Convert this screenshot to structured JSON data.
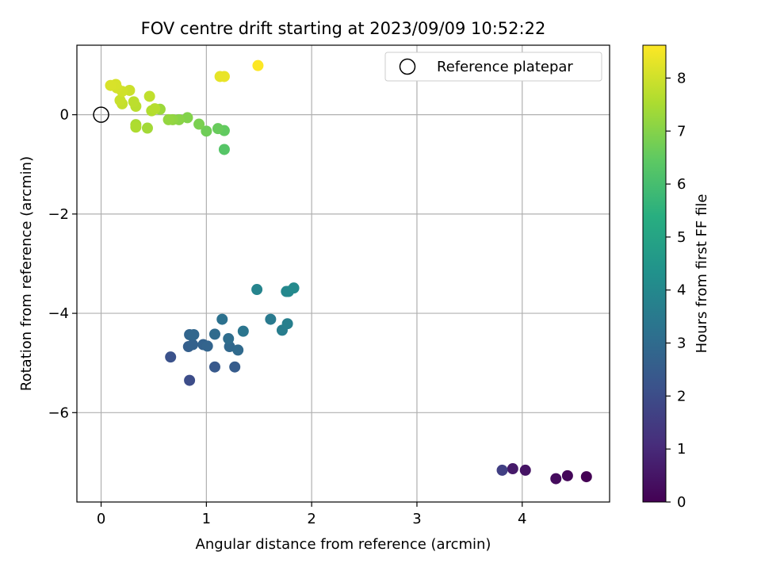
{
  "chart_data": {
    "type": "scatter",
    "title": "FOV centre drift starting at 2023/09/09 10:52:22",
    "xlabel": "Angular distance from reference (arcmin)",
    "ylabel": "Rotation from reference (arcmin)",
    "xlim": [
      -0.23,
      4.83
    ],
    "ylim": [
      -7.8,
      1.4
    ],
    "xticks": [
      0,
      1,
      2,
      3,
      4
    ],
    "yticks": [
      -6,
      -4,
      -2,
      0
    ],
    "grid": true,
    "legend": {
      "placement": "top-right",
      "entries": [
        "Reference platepar"
      ]
    },
    "colorbar": {
      "label": "Hours from first FF file",
      "range": [
        0,
        8.62
      ],
      "ticks": [
        0,
        1,
        2,
        3,
        4,
        5,
        6,
        7,
        8
      ],
      "colormap": "viridis"
    },
    "reference_point": {
      "x": 0,
      "y": 0,
      "label": "Reference platepar"
    },
    "points": [
      {
        "x": 4.61,
        "y": -7.29,
        "c": 0.0
      },
      {
        "x": 4.43,
        "y": -7.27,
        "c": 0.15
      },
      {
        "x": 4.32,
        "y": -7.33,
        "c": 0.25
      },
      {
        "x": 4.03,
        "y": -7.16,
        "c": 0.45
      },
      {
        "x": 3.91,
        "y": -7.13,
        "c": 0.6
      },
      {
        "x": 3.81,
        "y": -7.16,
        "c": 1.6
      },
      {
        "x": 0.84,
        "y": -5.35,
        "c": 2.0
      },
      {
        "x": 0.66,
        "y": -4.88,
        "c": 2.15
      },
      {
        "x": 1.08,
        "y": -5.08,
        "c": 2.4
      },
      {
        "x": 1.27,
        "y": -5.08,
        "c": 2.5
      },
      {
        "x": 0.83,
        "y": -4.67,
        "c": 2.6
      },
      {
        "x": 0.87,
        "y": -4.63,
        "c": 2.65
      },
      {
        "x": 0.97,
        "y": -4.63,
        "c": 2.7
      },
      {
        "x": 1.01,
        "y": -4.66,
        "c": 2.75
      },
      {
        "x": 0.84,
        "y": -4.43,
        "c": 2.8
      },
      {
        "x": 0.88,
        "y": -4.43,
        "c": 2.85
      },
      {
        "x": 1.22,
        "y": -4.67,
        "c": 2.9
      },
      {
        "x": 1.3,
        "y": -4.74,
        "c": 2.95
      },
      {
        "x": 1.08,
        "y": -4.42,
        "c": 3.0
      },
      {
        "x": 1.21,
        "y": -4.51,
        "c": 3.05
      },
      {
        "x": 1.15,
        "y": -4.12,
        "c": 3.2
      },
      {
        "x": 1.35,
        "y": -4.36,
        "c": 3.35
      },
      {
        "x": 1.61,
        "y": -4.12,
        "c": 3.5
      },
      {
        "x": 1.72,
        "y": -4.34,
        "c": 3.6
      },
      {
        "x": 1.77,
        "y": -4.21,
        "c": 3.7
      },
      {
        "x": 1.48,
        "y": -3.52,
        "c": 3.85
      },
      {
        "x": 1.76,
        "y": -3.56,
        "c": 3.95
      },
      {
        "x": 1.78,
        "y": -3.56,
        "c": 4.0
      },
      {
        "x": 1.83,
        "y": -3.49,
        "c": 4.05
      },
      {
        "x": 1.17,
        "y": -0.7,
        "c": 6.3
      },
      {
        "x": 1.17,
        "y": -0.32,
        "c": 6.5
      },
      {
        "x": 1.11,
        "y": -0.28,
        "c": 6.6
      },
      {
        "x": 1.0,
        "y": -0.33,
        "c": 6.7
      },
      {
        "x": 0.93,
        "y": -0.19,
        "c": 6.85
      },
      {
        "x": 0.82,
        "y": -0.06,
        "c": 6.95
      },
      {
        "x": 0.74,
        "y": -0.1,
        "c": 7.05
      },
      {
        "x": 0.68,
        "y": -0.1,
        "c": 7.15
      },
      {
        "x": 0.64,
        "y": -0.1,
        "c": 7.2
      },
      {
        "x": 0.56,
        "y": 0.11,
        "c": 7.3
      },
      {
        "x": 0.44,
        "y": -0.27,
        "c": 7.4
      },
      {
        "x": 0.33,
        "y": -0.2,
        "c": 7.5
      },
      {
        "x": 0.33,
        "y": -0.25,
        "c": 7.55
      },
      {
        "x": 0.48,
        "y": 0.08,
        "c": 7.6
      },
      {
        "x": 0.51,
        "y": 0.12,
        "c": 7.65
      },
      {
        "x": 0.33,
        "y": 0.17,
        "c": 7.7
      },
      {
        "x": 0.31,
        "y": 0.26,
        "c": 7.75
      },
      {
        "x": 0.46,
        "y": 0.37,
        "c": 7.8
      },
      {
        "x": 0.2,
        "y": 0.22,
        "c": 7.85
      },
      {
        "x": 0.18,
        "y": 0.29,
        "c": 7.9
      },
      {
        "x": 0.27,
        "y": 0.49,
        "c": 7.95
      },
      {
        "x": 0.2,
        "y": 0.47,
        "c": 8.0
      },
      {
        "x": 0.15,
        "y": 0.54,
        "c": 8.05
      },
      {
        "x": 0.14,
        "y": 0.61,
        "c": 8.1
      },
      {
        "x": 0.09,
        "y": 0.59,
        "c": 8.12
      },
      {
        "x": 1.13,
        "y": 0.77,
        "c": 8.3
      },
      {
        "x": 1.17,
        "y": 0.77,
        "c": 8.35
      },
      {
        "x": 1.49,
        "y": 0.99,
        "c": 8.6
      }
    ]
  }
}
